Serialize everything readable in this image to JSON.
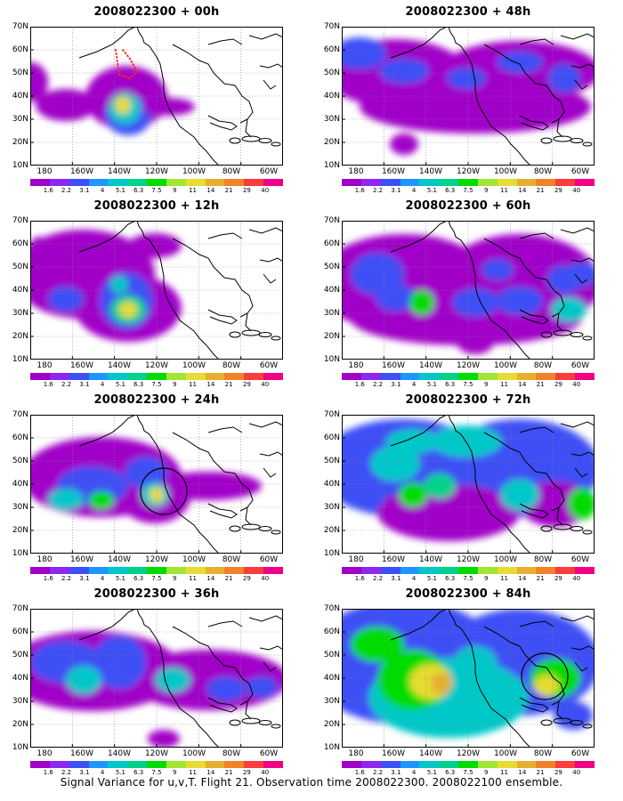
{
  "caption": "Signal Variance for u,v,T. Flight 21. Observation time 2008022300. 2008022100 ensemble.",
  "y_labels": [
    "70N",
    "60N",
    "50N",
    "40N",
    "30N",
    "20N",
    "10N"
  ],
  "x_labels": [
    "180",
    "160W",
    "140W",
    "120W",
    "100W",
    "80W",
    "60W"
  ],
  "colorbar": {
    "labels": [
      "1.6",
      "2.2",
      "3.1",
      "4",
      "5.1",
      "6.3",
      "7.5",
      "9",
      "11",
      "14",
      "21",
      "29",
      "40"
    ],
    "colors": [
      "#a000c8",
      "#8c28f0",
      "#3c50f5",
      "#1e96ff",
      "#00c8c8",
      "#00d28c",
      "#00dc00",
      "#a0e632",
      "#e6dc32",
      "#e6af2d",
      "#f08228",
      "#fa3c3c",
      "#f00082"
    ]
  },
  "panels": [
    {
      "title": "2008022300 + 00h"
    },
    {
      "title": "2008022300 + 48h"
    },
    {
      "title": "2008022300 + 12h"
    },
    {
      "title": "2008022300 + 60h"
    },
    {
      "title": "2008022300 + 24h"
    },
    {
      "title": "2008022300 + 72h"
    },
    {
      "title": "2008022300 + 36h"
    },
    {
      "title": "2008022300 + 84h"
    }
  ]
}
